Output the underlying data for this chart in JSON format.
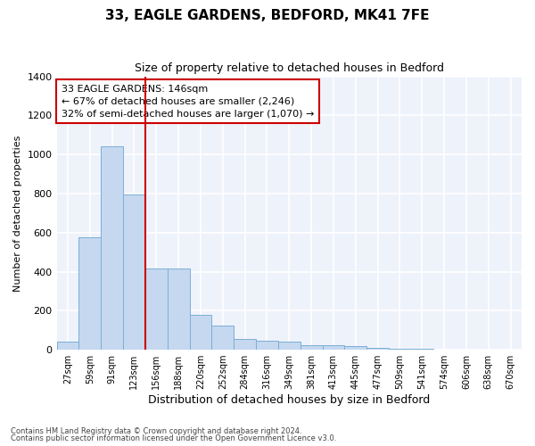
{
  "title1": "33, EAGLE GARDENS, BEDFORD, MK41 7FE",
  "title2": "Size of property relative to detached houses in Bedford",
  "xlabel": "Distribution of detached houses by size in Bedford",
  "ylabel": "Number of detached properties",
  "bar_color": "#c5d8f0",
  "bar_edge_color": "#7bafd4",
  "background_color": "#eef2fb",
  "grid_color": "#ffffff",
  "annotation_box_color": "#cc0000",
  "vline_color": "#cc0000",
  "annotation_title": "33 EAGLE GARDENS: 146sqm",
  "annotation_line2": "← 67% of detached houses are smaller (2,246)",
  "annotation_line3": "32% of semi-detached houses are larger (1,070) →",
  "footer1": "Contains HM Land Registry data © Crown copyright and database right 2024.",
  "footer2": "Contains public sector information licensed under the Open Government Licence v3.0.",
  "categories": [
    "27sqm",
    "59sqm",
    "91sqm",
    "123sqm",
    "156sqm",
    "188sqm",
    "220sqm",
    "252sqm",
    "284sqm",
    "316sqm",
    "349sqm",
    "381sqm",
    "413sqm",
    "445sqm",
    "477sqm",
    "509sqm",
    "541sqm",
    "574sqm",
    "606sqm",
    "638sqm",
    "670sqm"
  ],
  "values": [
    40,
    575,
    1040,
    795,
    415,
    415,
    180,
    125,
    55,
    48,
    42,
    24,
    22,
    18,
    10,
    5,
    3,
    2,
    1,
    1,
    0
  ],
  "ylim": [
    0,
    1400
  ],
  "yticks": [
    0,
    200,
    400,
    600,
    800,
    1000,
    1200,
    1400
  ],
  "vline_idx": 4
}
